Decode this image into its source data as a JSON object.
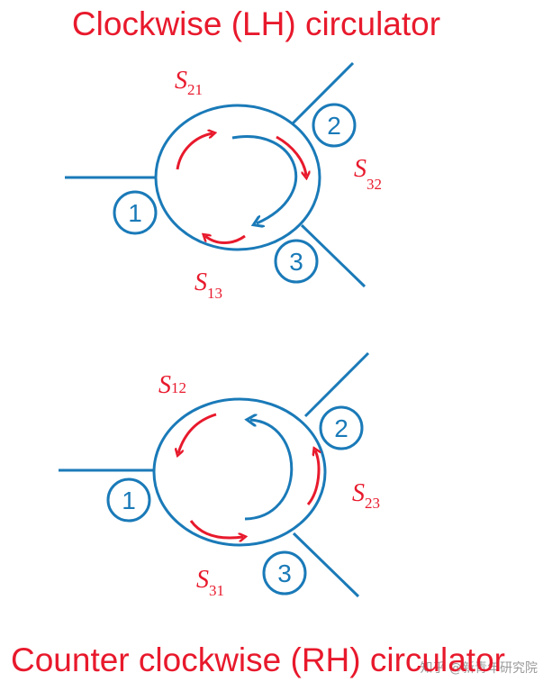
{
  "titles": {
    "top": "Clockwise (LH) circulator",
    "bottom": "Counter clockwise (RH) circulator"
  },
  "top_diagram": {
    "ports": [
      "1",
      "2",
      "3"
    ],
    "labels": {
      "s21": {
        "main": "S",
        "sub": "21"
      },
      "s32": {
        "main": "S",
        "sub": "32"
      },
      "s13": {
        "main": "S",
        "sub": "13"
      }
    }
  },
  "bottom_diagram": {
    "ports": [
      "1",
      "2",
      "3"
    ],
    "labels": {
      "s12": {
        "main": "S",
        "sub": "12"
      },
      "s23": {
        "main": "S",
        "sub": "23"
      },
      "s31": {
        "main": "S",
        "sub": "31"
      }
    }
  },
  "watermark": "知乎 @新青年研究院",
  "colors": {
    "red": "#e8192c",
    "blue": "#1a7ab8"
  }
}
